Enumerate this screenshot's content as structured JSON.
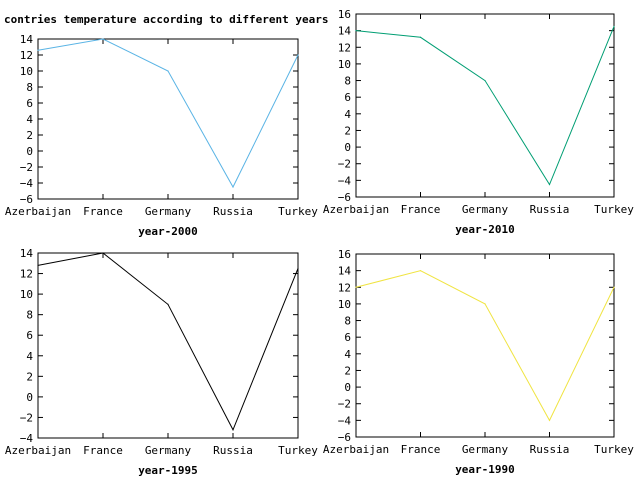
{
  "figure_title": "contries temperature according to different years",
  "chart_data": [
    {
      "type": "line",
      "categories": [
        "Azerbaijan",
        "France",
        "Germany",
        "Russia",
        "Turkey"
      ],
      "series": [
        {
          "values": [
            12.6,
            14,
            10,
            -4.5,
            12
          ],
          "color": "#5ab4e5"
        }
      ],
      "xlabel": "year-2000",
      "ylim": [
        -6,
        14
      ],
      "ystep": 2,
      "grid": false
    },
    {
      "type": "line",
      "categories": [
        "Azerbaijan",
        "France",
        "Germany",
        "Russia",
        "Turkey"
      ],
      "series": [
        {
          "values": [
            14,
            13.2,
            8,
            -4.5,
            14.5
          ],
          "color": "#009e73"
        }
      ],
      "xlabel": "year-2010",
      "ylim": [
        -6,
        16
      ],
      "ystep": 2,
      "grid": false
    },
    {
      "type": "line",
      "categories": [
        "Azerbaijan",
        "France",
        "Germany",
        "Russia",
        "Turkey"
      ],
      "series": [
        {
          "values": [
            12.8,
            14,
            9,
            -3.2,
            12.5
          ],
          "color": "#000000"
        }
      ],
      "xlabel": "year-1995",
      "ylim": [
        -4,
        14
      ],
      "ystep": 2,
      "grid": false
    },
    {
      "type": "line",
      "categories": [
        "Azerbaijan",
        "France",
        "Germany",
        "Russia",
        "Turkey"
      ],
      "series": [
        {
          "values": [
            12,
            14,
            10,
            -4,
            12
          ],
          "color": "#f0e442"
        }
      ],
      "xlabel": "year-1990",
      "ylim": [
        -6,
        16
      ],
      "ystep": 2,
      "grid": false
    }
  ]
}
